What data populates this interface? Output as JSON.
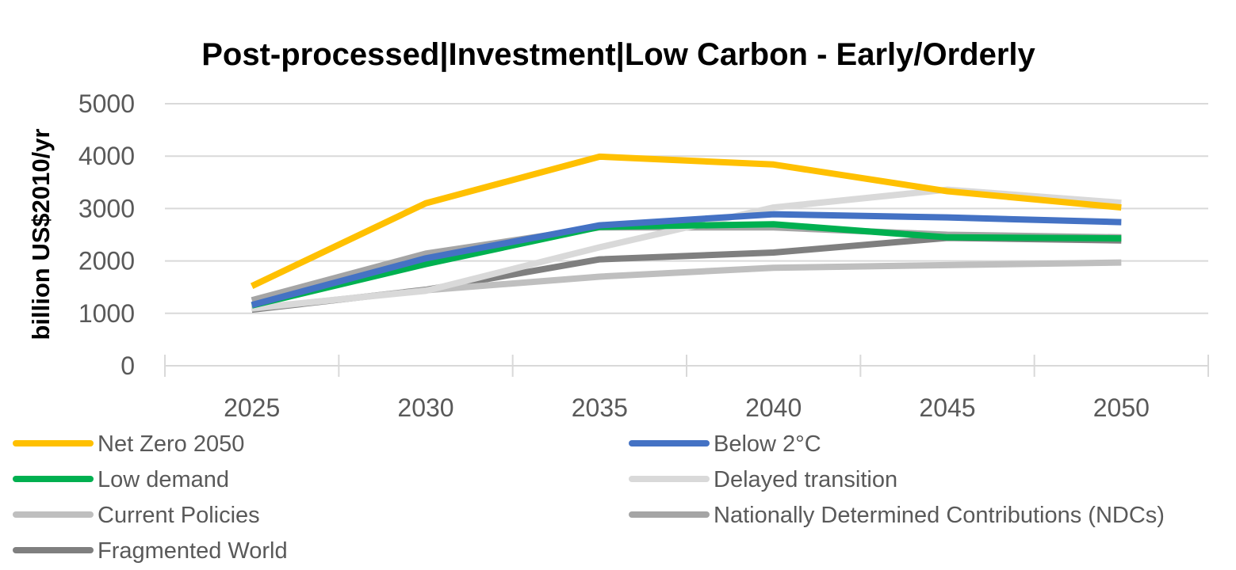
{
  "chart_data": {
    "type": "line",
    "title": "Post-processed|Investment|Low Carbon - Early/Orderly",
    "xlabel": "",
    "ylabel": "billion US$2010/yr",
    "categories": [
      "2025",
      "2030",
      "2035",
      "2040",
      "2045",
      "2050"
    ],
    "ylim": [
      0,
      5000
    ],
    "yticks": [
      0,
      1000,
      2000,
      3000,
      4000,
      5000
    ],
    "grid": true,
    "legend_position": "bottom",
    "series": [
      {
        "name": "Net Zero 2050",
        "color": "#FFC000",
        "values": [
          1520,
          3100,
          3990,
          3840,
          3330,
          3020
        ]
      },
      {
        "name": "Below 2°C",
        "color": "#4472C4",
        "values": [
          1160,
          2050,
          2680,
          2890,
          2830,
          2740
        ]
      },
      {
        "name": "Low demand",
        "color": "#00B050",
        "values": [
          1150,
          1940,
          2650,
          2700,
          2450,
          2430
        ]
      },
      {
        "name": "Delayed transition",
        "color": "#D9D9D9",
        "values": [
          1100,
          1430,
          2260,
          3020,
          3360,
          3110
        ]
      },
      {
        "name": "Current Policies",
        "color": "#BFBFBF",
        "values": [
          1090,
          1440,
          1700,
          1870,
          1920,
          1970
        ]
      },
      {
        "name": "Nationally Determined Contributions (NDCs)",
        "color": "#A5A5A5",
        "values": [
          1250,
          2140,
          2640,
          2640,
          2500,
          2450
        ]
      },
      {
        "name": "Fragmented World",
        "color": "#7F7F7F",
        "values": [
          1070,
          1450,
          2030,
          2160,
          2440,
          2390
        ]
      }
    ]
  }
}
